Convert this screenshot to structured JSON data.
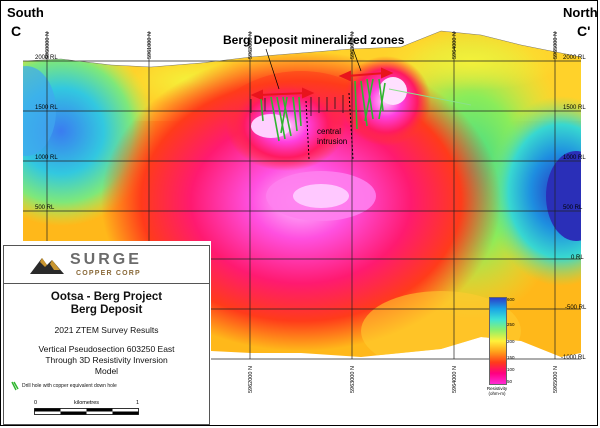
{
  "corners": {
    "left_dir": "South",
    "right_dir": "North",
    "left_label": "C",
    "right_label": "C'"
  },
  "mineralized_label": "Berg Deposit mineralized zones",
  "intrusion_label_1": "central",
  "intrusion_label_2": "intrusion",
  "elevation_labels": [
    "2000 RL",
    "1500 RL",
    "1000 RL",
    "500 RL",
    "0 RL",
    "-500 RL",
    "-1000 RL"
  ],
  "elevation_labels_left": [
    "2000 RL",
    "1500 RL",
    "1000 RL",
    "500 RL"
  ],
  "northing_labels": [
    "5962000 N",
    "5963000 N",
    "5964000 N",
    "5965000 N"
  ],
  "northing_top": [
    "5960000 N",
    "5961000 N",
    "5962000 N",
    "5963000 N",
    "5964000 N",
    "5965000 N"
  ],
  "logo": {
    "name": "SURGE",
    "sub": "COPPER CORP"
  },
  "title_line1": "Ootsa - Berg Project",
  "title_line2": "Berg Deposit",
  "survey": "2021 ZTEM Survey Results",
  "desc_line1": "Vertical Pseudosection 603250 East",
  "desc_line2": "Through 3D Resistivity Inversion",
  "desc_line3": "Model",
  "drillhole_legend": "Drill hole with copper equivalent down hole",
  "scale": {
    "label": "kilometres",
    "zero": "0",
    "one": "1"
  },
  "colorbar": {
    "ticks": [
      "600",
      "250",
      "200",
      "150",
      "100",
      "50"
    ],
    "title_1": "Resistivity",
    "title_2": "(ohm-m)"
  },
  "colors": {
    "high": "#2c3fc9",
    "mid": "#fff13a",
    "low": "#ff2bd6",
    "drill": "#3ec83e",
    "arrow": "#e8141c"
  }
}
